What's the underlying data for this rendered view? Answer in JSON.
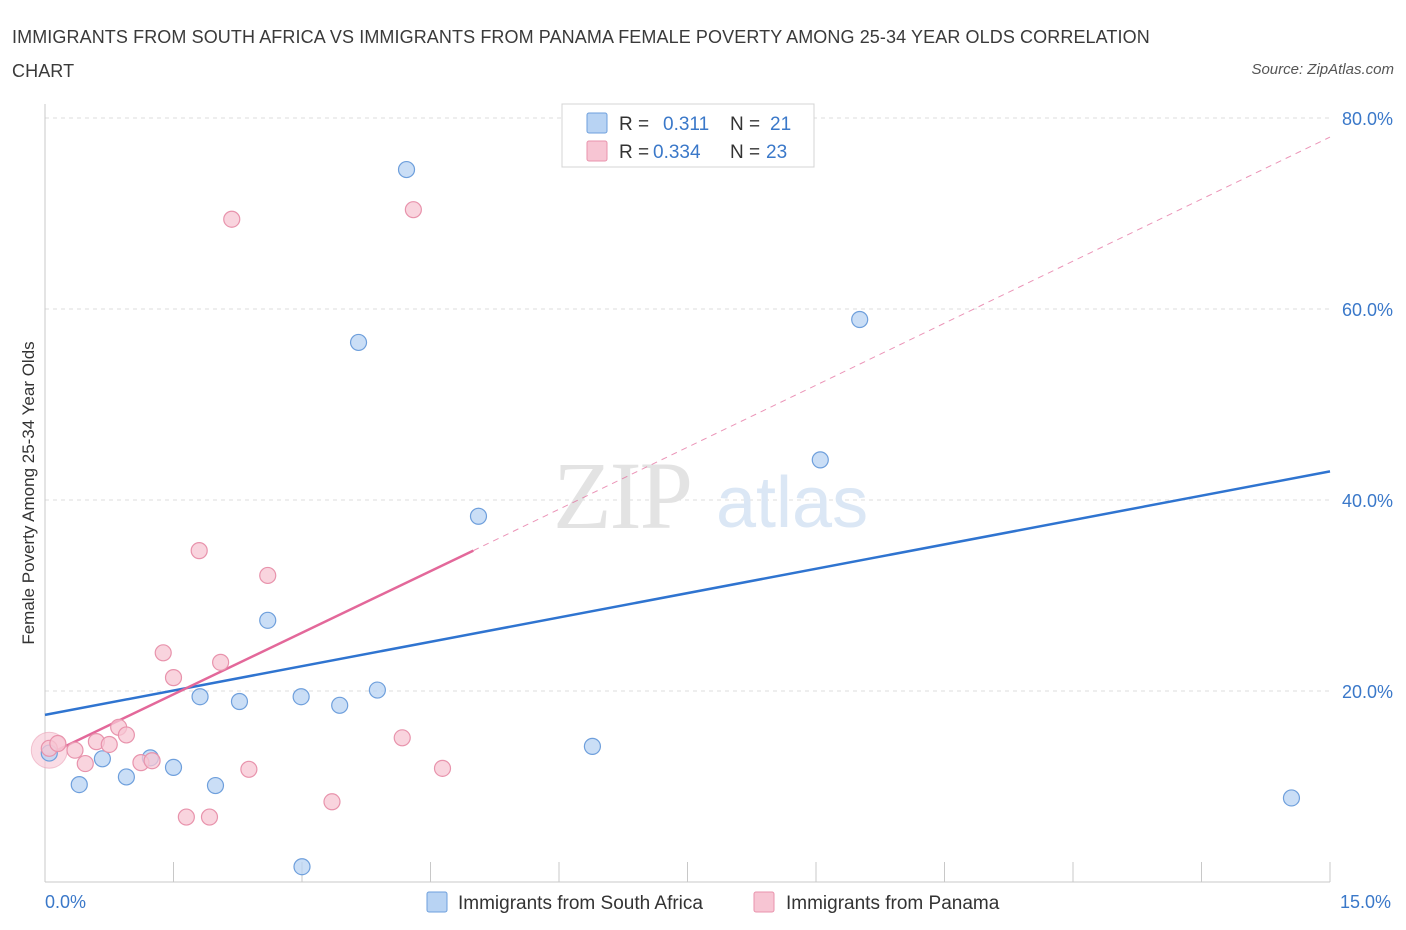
{
  "header": {
    "title": "IMMIGRANTS FROM SOUTH AFRICA VS IMMIGRANTS FROM PANAMA FEMALE POVERTY AMONG 25-34 YEAR OLDS CORRELATION CHART",
    "source": "Source: ZipAtlas.com"
  },
  "watermark": {
    "zip": "ZIP",
    "atlas": "atlas"
  },
  "colors": {
    "blue_fill": "#b8d3f3",
    "blue_stroke": "#6e9fdc",
    "blue_line": "#2f74d0",
    "pink_fill": "#f7c5d3",
    "pink_stroke": "#e893ac",
    "pink_line": "#e3689a",
    "axis_text": "#3a78c9",
    "grid": "#dcdcdc"
  },
  "legend": {
    "r_label": "R =",
    "n_label": "N =",
    "rows": [
      {
        "r": "0.311",
        "n": "21"
      },
      {
        "r": "0.334",
        "n": "23"
      }
    ]
  },
  "chart_data": {
    "type": "scatter",
    "title": "IMMIGRANTS FROM SOUTH AFRICA VS IMMIGRANTS FROM PANAMA FEMALE POVERTY AMONG 25-34 YEAR OLDS CORRELATION CHART",
    "xlabel": "",
    "ylabel": "Female Poverty Among 25-34 Year Olds",
    "xlim": [
      0,
      15
    ],
    "ylim": [
      0,
      80
    ],
    "x_tick_labels": [
      "0.0%",
      "15.0%"
    ],
    "y_ticks": [
      20,
      40,
      60,
      80
    ],
    "y_tick_labels": [
      "20.0%",
      "40.0%",
      "60.0%",
      "80.0%"
    ],
    "series": [
      {
        "name": "Immigrants from South Africa",
        "color": "blue",
        "points": [
          [
            0.05,
            13.5
          ],
          [
            0.4,
            10.2
          ],
          [
            0.67,
            12.9
          ],
          [
            0.95,
            11.0
          ],
          [
            1.23,
            13.0
          ],
          [
            1.5,
            12.0
          ],
          [
            1.81,
            19.4
          ],
          [
            1.99,
            10.1
          ],
          [
            2.27,
            18.9
          ],
          [
            2.6,
            27.4
          ],
          [
            2.99,
            19.4
          ],
          [
            3.0,
            1.6
          ],
          [
            3.44,
            18.5
          ],
          [
            3.66,
            56.5
          ],
          [
            3.88,
            20.1
          ],
          [
            4.22,
            74.6
          ],
          [
            5.06,
            38.3
          ],
          [
            6.39,
            14.2
          ],
          [
            9.05,
            44.2
          ],
          [
            9.51,
            58.9
          ],
          [
            14.55,
            8.8
          ]
        ],
        "trend": {
          "x0": 0,
          "y0": 17.5,
          "x1": 15,
          "y1": 43.0
        }
      },
      {
        "name": "Immigrants from Panama",
        "color": "pink",
        "points": [
          [
            0.05,
            14.0
          ],
          [
            0.15,
            14.5
          ],
          [
            0.35,
            13.8
          ],
          [
            0.47,
            12.4
          ],
          [
            0.6,
            14.7
          ],
          [
            0.75,
            14.4
          ],
          [
            0.86,
            16.2
          ],
          [
            0.95,
            15.4
          ],
          [
            1.12,
            12.5
          ],
          [
            1.25,
            12.7
          ],
          [
            1.38,
            24.0
          ],
          [
            1.5,
            21.4
          ],
          [
            1.65,
            6.8
          ],
          [
            1.8,
            34.7
          ],
          [
            1.92,
            6.8
          ],
          [
            2.05,
            23.0
          ],
          [
            2.18,
            69.4
          ],
          [
            2.38,
            11.8
          ],
          [
            2.6,
            32.1
          ],
          [
            3.35,
            8.4
          ],
          [
            4.17,
            15.1
          ],
          [
            4.3,
            70.4
          ],
          [
            4.64,
            11.9
          ]
        ],
        "trend": {
          "x0": 0,
          "y0": 13.2,
          "x1": 5.0,
          "y1": 34.7
        },
        "trend_extension": {
          "x0": 5.0,
          "y0": 34.7,
          "x1": 15,
          "y1": 78.0
        }
      }
    ],
    "legend_position": "bottom-center",
    "grid": true
  }
}
